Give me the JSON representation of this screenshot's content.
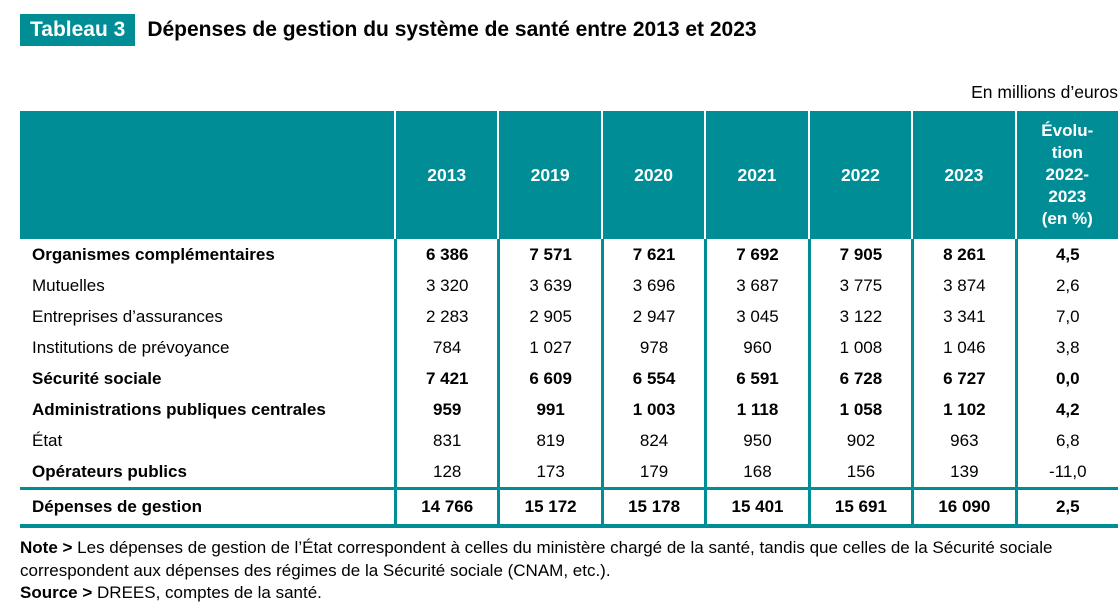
{
  "title": {
    "badge": "Tableau 3",
    "text": "Dépenses de gestion du système de santé entre 2013 et 2023"
  },
  "unit_label": "En millions d’euros",
  "colors": {
    "teal_accent": "#008d96",
    "header_text": "#ffffff",
    "body_text": "#000000"
  },
  "table": {
    "year_columns": [
      "2013",
      "2019",
      "2020",
      "2021",
      "2022",
      "2023"
    ],
    "evolution_column": "Évolu-\ntion\n2022-\n2023\n(en %)",
    "rows": [
      {
        "label": "Organismes complémentaires",
        "values": [
          "6 386",
          "7 571",
          "7 621",
          "7 692",
          "7 905",
          "8 261",
          "4,5"
        ]
      },
      {
        "label": "Mutuelles",
        "values": [
          "3 320",
          "3 639",
          "3 696",
          "3 687",
          "3 775",
          "3 874",
          "2,6"
        ]
      },
      {
        "label": "Entreprises d’assurances",
        "values": [
          "2 283",
          "2 905",
          "2 947",
          "3 045",
          "3 122",
          "3 341",
          "7,0"
        ]
      },
      {
        "label": "Institutions de prévoyance",
        "values": [
          "784",
          "1 027",
          "978",
          "960",
          "1 008",
          "1 046",
          "3,8"
        ]
      },
      {
        "label": "Sécurité sociale",
        "values": [
          "7 421",
          "6 609",
          "6 554",
          "6 591",
          "6 728",
          "6 727",
          "0,0"
        ]
      },
      {
        "label": "Administrations publiques centrales",
        "values": [
          "959",
          "991",
          "1 003",
          "1 118",
          "1 058",
          "1 102",
          "4,2"
        ]
      },
      {
        "label": "État",
        "values": [
          "831",
          "819",
          "824",
          "950",
          "902",
          "963",
          "6,8"
        ]
      },
      {
        "label": "Opérateurs publics",
        "values": [
          "128",
          "173",
          "179",
          "168",
          "156",
          "139",
          "-11,0"
        ]
      }
    ],
    "total": {
      "label": "Dépenses de gestion",
      "values": [
        "14 766",
        "15 172",
        "15 178",
        "15 401",
        "15 691",
        "16 090",
        "2,5"
      ]
    }
  },
  "footnotes": {
    "note_label": "Note >",
    "note_text": " Les dépenses de gestion de l’État correspondent à celles du ministère chargé de la santé, tandis que celles de la Sécurité sociale correspondent aux dépenses des régimes de la Sécurité sociale (CNAM, etc.).",
    "source_label": "Source >",
    "source_text": " DREES, comptes de la santé."
  }
}
